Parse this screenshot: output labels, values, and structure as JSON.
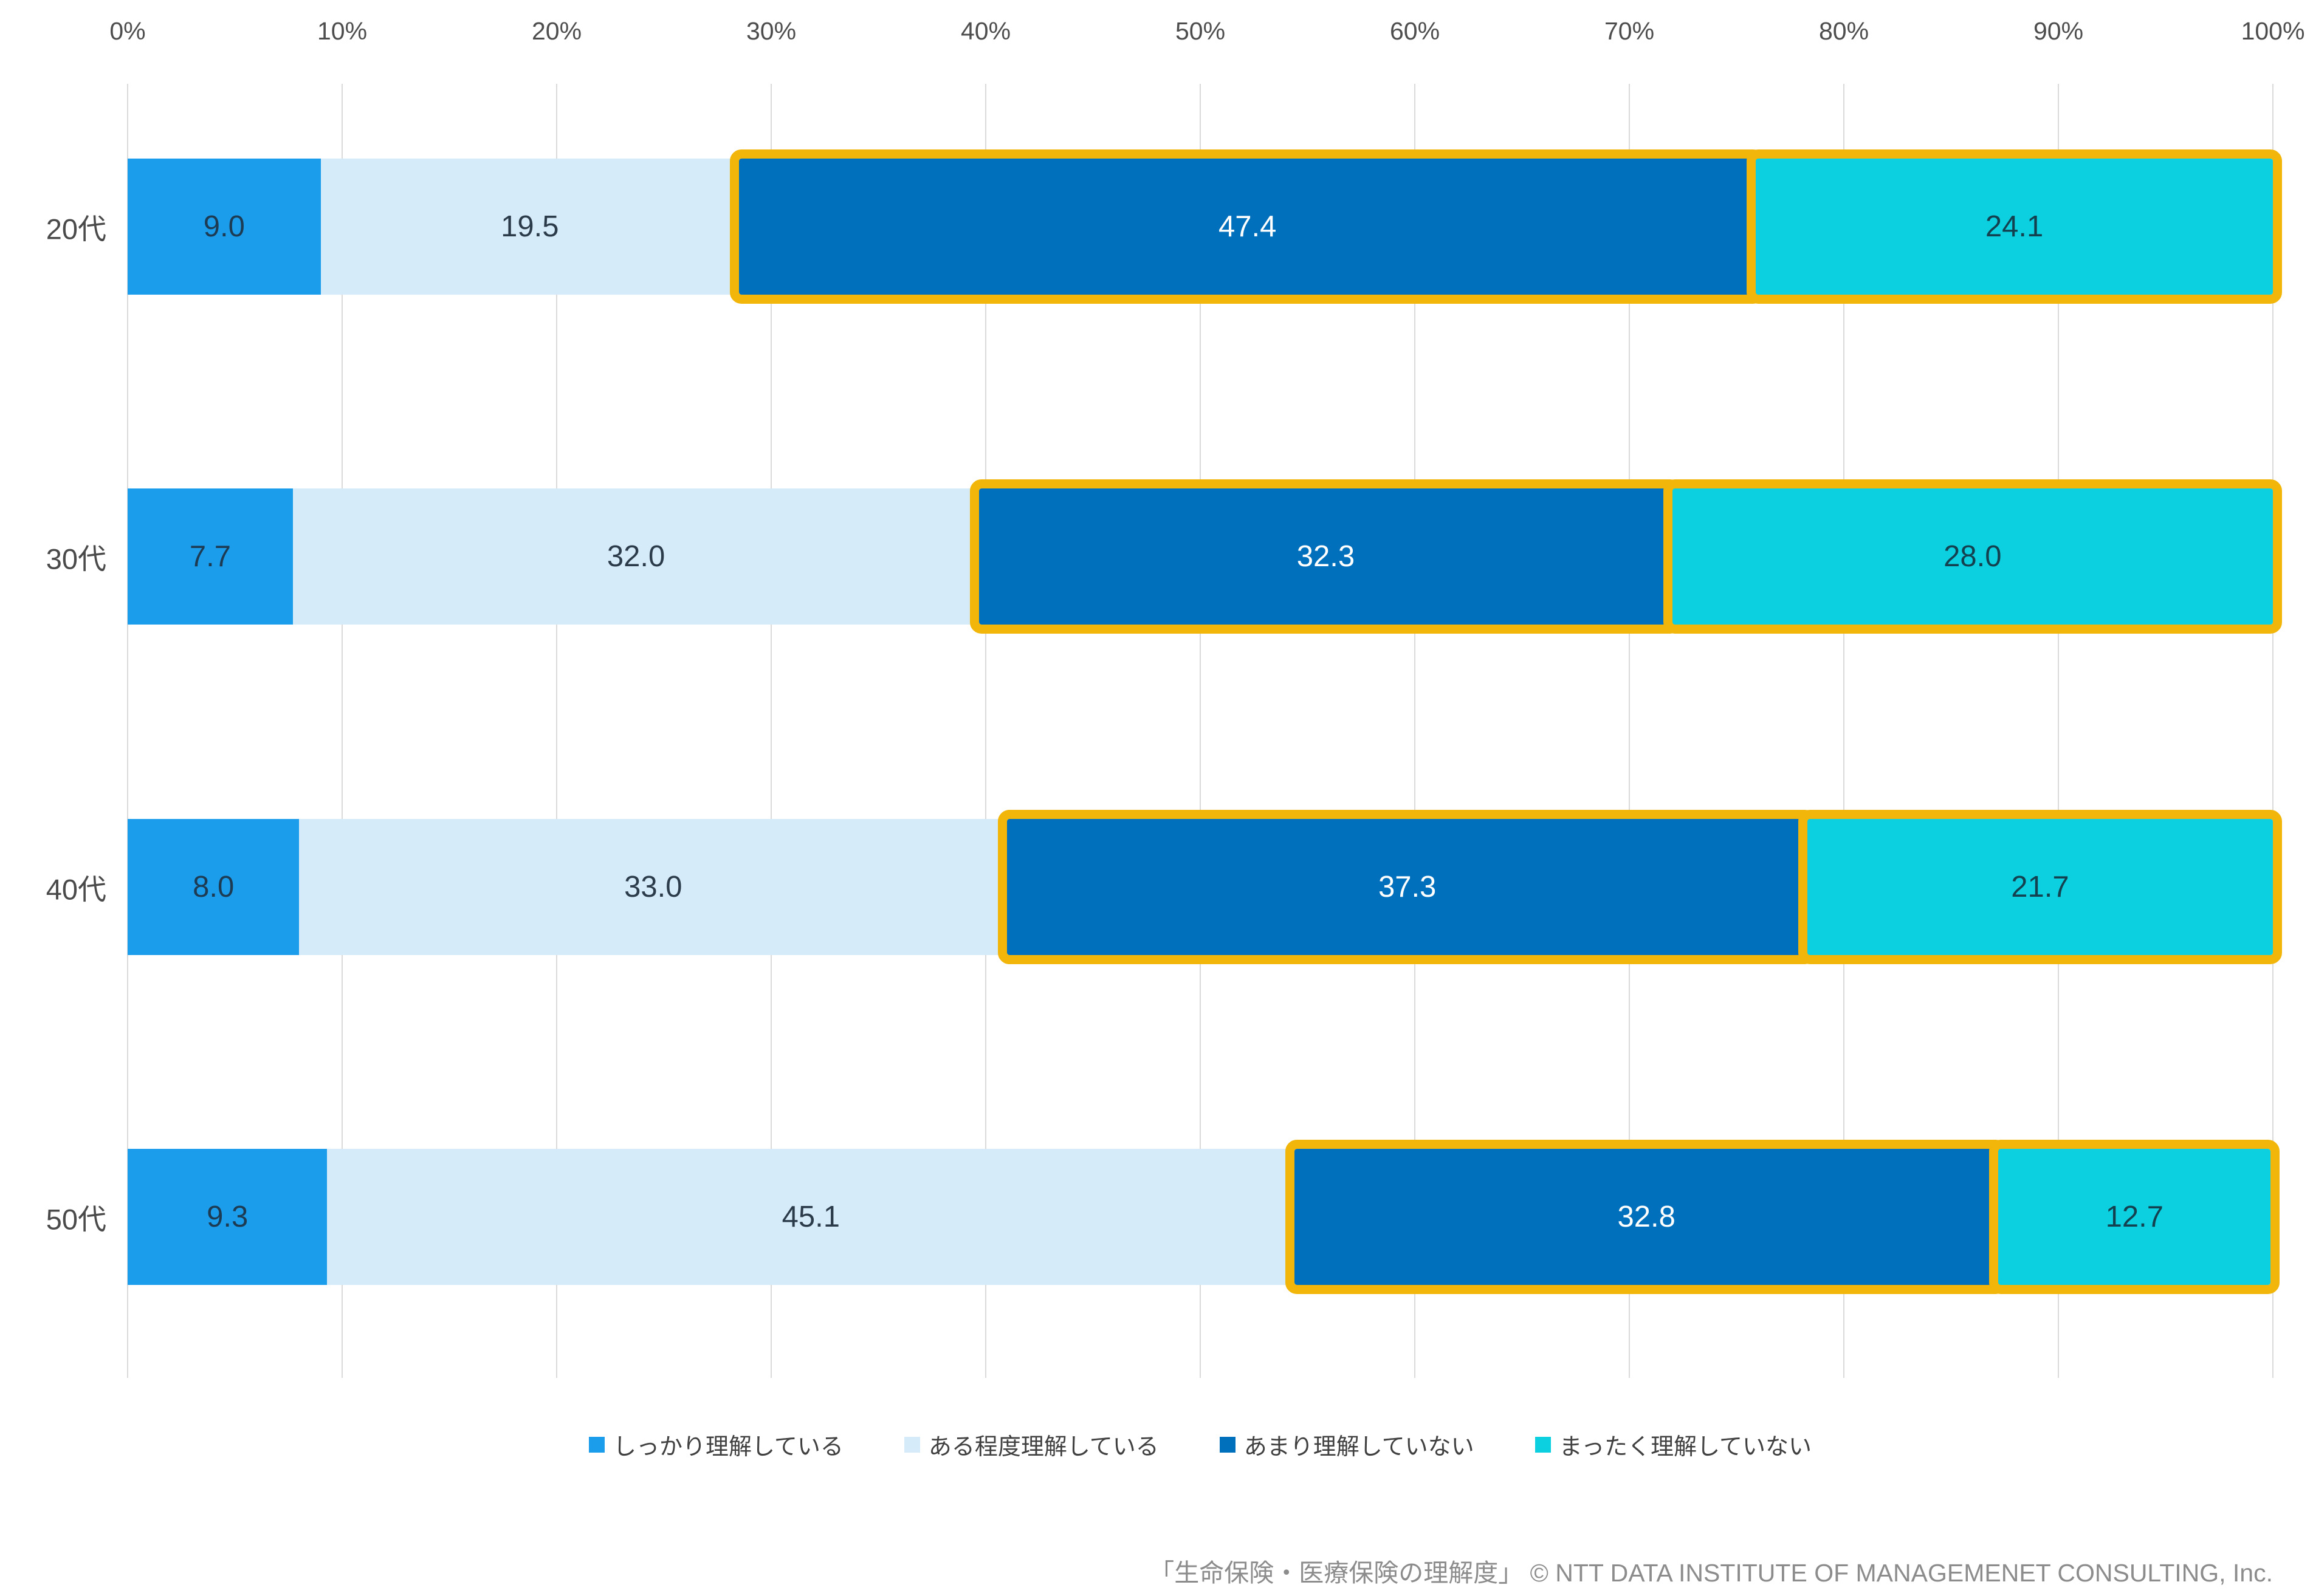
{
  "chart_data": {
    "type": "bar",
    "orientation": "horizontal",
    "stacked": true,
    "title": "",
    "xlabel": "",
    "ylabel": "",
    "xlim": [
      0,
      100
    ],
    "x_ticks": [
      "0%",
      "10%",
      "20%",
      "30%",
      "40%",
      "50%",
      "60%",
      "70%",
      "80%",
      "90%",
      "100%"
    ],
    "grid": true,
    "legend_position": "bottom",
    "categories": [
      "20代",
      "30代",
      "40代",
      "50代"
    ],
    "series": [
      {
        "name": "しっかり理解している",
        "color": "#1b9dec",
        "label_color": "#1d3b53",
        "highlighted": false,
        "values": [
          9.0,
          7.7,
          8.0,
          9.3
        ]
      },
      {
        "name": "ある程度理解している",
        "color": "#d6ebfa",
        "label_color": "#2b3b4a",
        "highlighted": false,
        "values": [
          19.5,
          32.0,
          33.0,
          45.1
        ]
      },
      {
        "name": "あまり理解していない",
        "color": "#0070bc",
        "label_color": "#ffffff",
        "highlighted": true,
        "values": [
          47.4,
          32.3,
          37.3,
          32.8
        ]
      },
      {
        "name": "まったく理解していない",
        "color": "#0cd0e0",
        "label_color": "#14414f",
        "highlighted": true,
        "values": [
          24.1,
          28.0,
          21.7,
          12.7
        ]
      }
    ],
    "highlight_color": "#f2b50a",
    "value_format": "one_decimal"
  },
  "footer": {
    "caption": "「生命保険・医療保険の理解度」 © NTT DATA INSTITUTE OF MANAGEMENET CONSULTING, Inc."
  }
}
